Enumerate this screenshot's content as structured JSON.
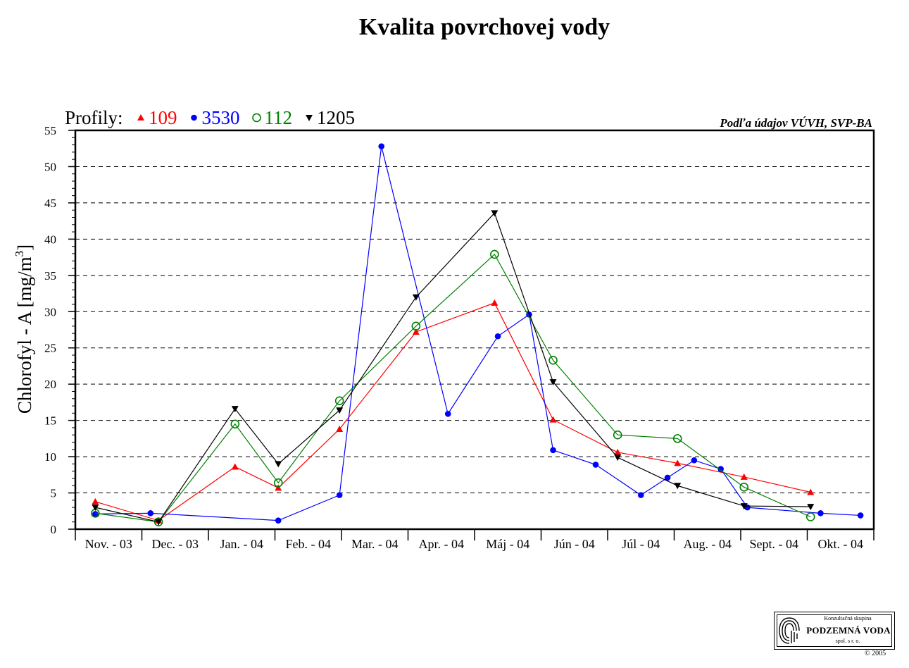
{
  "chart_data": {
    "type": "line",
    "title": "Kvalita povrchovej vody",
    "source_note": "Podľa údajov VÚVH, SVP-BA",
    "legend_prefix": "Profily:",
    "ylabel": "Chlorofyl - A [mg/m",
    "ylabel_sup": "3",
    "ylabel_close": "]",
    "ylim": [
      0,
      55
    ],
    "yticks": [
      0,
      5,
      10,
      15,
      20,
      25,
      30,
      35,
      40,
      45,
      50,
      55
    ],
    "xlim": [
      0,
      12
    ],
    "categories": [
      "Nov. - 03",
      "Dec. - 03",
      "Jan. - 04",
      "Feb. - 04",
      "Mar. - 04",
      "Apr. - 04",
      "Máj - 04",
      "Jún - 04",
      "Júl - 04",
      "Aug. - 04",
      "Sept. - 04",
      "Okt. - 04"
    ],
    "grid": true,
    "legend_position": "top-left",
    "series": [
      {
        "name": "109",
        "color": "#ff0000",
        "marker": "triangle-up",
        "x": [
          0.3,
          1.25,
          2.4,
          3.05,
          3.97,
          5.12,
          6.3,
          7.18,
          8.15,
          9.05,
          10.05,
          11.05
        ],
        "y": [
          3.8,
          1.2,
          8.6,
          5.7,
          13.8,
          27.2,
          31.2,
          15.1,
          10.6,
          9.1,
          7.2,
          5.1
        ]
      },
      {
        "name": "3530",
        "color": "#0000ff",
        "marker": "circle-filled",
        "x": [
          0.3,
          1.13,
          3.05,
          3.97,
          4.6,
          5.6,
          6.35,
          6.82,
          7.18,
          7.82,
          8.5,
          8.9,
          9.3,
          9.7,
          10.1,
          11.2,
          11.8
        ],
        "y": [
          2.1,
          2.2,
          1.2,
          4.7,
          52.8,
          15.9,
          26.6,
          29.6,
          10.9,
          8.9,
          4.7,
          7.1,
          9.5,
          8.3,
          3.0,
          2.2,
          1.9
        ]
      },
      {
        "name": "112",
        "color": "#008000",
        "marker": "circle-open",
        "x": [
          0.3,
          1.25,
          2.4,
          3.05,
          3.97,
          5.12,
          6.3,
          7.18,
          8.15,
          9.05,
          10.05,
          11.05
        ],
        "y": [
          2.2,
          1.0,
          14.5,
          6.4,
          17.7,
          28.0,
          37.9,
          23.3,
          13.0,
          12.5,
          5.8,
          1.7
        ]
      },
      {
        "name": "1205",
        "color": "#000000",
        "marker": "triangle-down",
        "x": [
          0.3,
          1.25,
          2.4,
          3.05,
          3.97,
          5.12,
          6.3,
          7.18,
          8.15,
          9.05,
          10.05,
          11.05
        ],
        "y": [
          3.0,
          1.0,
          16.6,
          9.0,
          16.4,
          32.0,
          43.6,
          20.3,
          9.9,
          6.0,
          3.2,
          3.1
        ]
      }
    ]
  },
  "logo": {
    "pre": "Konzultačná skupina",
    "name": "PODZEMNÁ VODA",
    "post": "spol. s r. o.",
    "copyright": "© 2005"
  }
}
